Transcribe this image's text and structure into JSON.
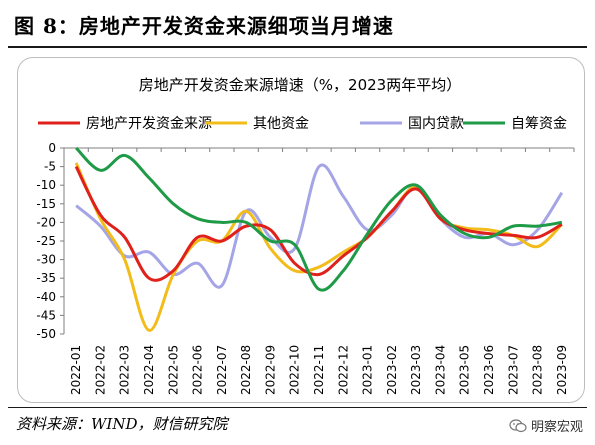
{
  "figure": {
    "title": "图 8：房地产开发资金来源细项当月增速",
    "source": "资料来源：WIND，财信研究院",
    "watermark": "明察宏观"
  },
  "chart_data": {
    "type": "line",
    "title": "房地产开发资金来源增速（%，2023两年平均）",
    "xlabel": "",
    "ylabel": "",
    "ylim": [
      -50,
      0
    ],
    "yticks": [
      0,
      -5,
      -10,
      -15,
      -20,
      -25,
      -30,
      -35,
      -40,
      -45,
      -50
    ],
    "grid": false,
    "legend_position": "top",
    "categories": [
      "2022-01",
      "2022-02",
      "2022-03",
      "2022-04",
      "2022-05",
      "2022-06",
      "2022-07",
      "2022-08",
      "2022-09",
      "2022-10",
      "2022-11",
      "2022-12",
      "2023-01",
      "2023-02",
      "2023-03",
      "2023-04",
      "2023-05",
      "2023-06",
      "2023-07",
      "2023-08",
      "2023-09"
    ],
    "series": [
      {
        "name": "房地产开发资金来源",
        "color": "#e0201b",
        "values": [
          -5,
          -18,
          -24,
          -35,
          -33,
          -24,
          -25,
          -21,
          -22,
          -31,
          -34,
          -29,
          -24,
          -17,
          -11,
          -19,
          -22,
          -23,
          -23.5,
          -24,
          -20.5
        ]
      },
      {
        "name": "其他资金",
        "color": "#f2bc1b",
        "values": [
          -4,
          -19,
          -30,
          -49,
          -34,
          -25,
          -25,
          -17,
          -27,
          -33,
          -32,
          -28,
          -24,
          -17,
          -10.5,
          -19,
          -21.5,
          -22,
          -23.5,
          -26.5,
          -20.5
        ]
      },
      {
        "name": "国内贷款",
        "color": "#a4a4e6",
        "values": [
          -15.5,
          -21,
          -29,
          -28,
          -34,
          -31,
          -37,
          -17,
          -24,
          -27,
          -5,
          -13,
          -22,
          -18,
          -10,
          -19,
          -24,
          -23,
          -26,
          -22,
          -12
        ]
      },
      {
        "name": "自筹资金",
        "color": "#1f9a47",
        "values": [
          0,
          -6,
          -2,
          -8,
          -15,
          -19,
          -20,
          -20,
          -25,
          -26,
          -38,
          -33,
          -23,
          -14,
          -10,
          -18,
          -23,
          -24,
          -21,
          -21,
          -20
        ]
      }
    ]
  }
}
